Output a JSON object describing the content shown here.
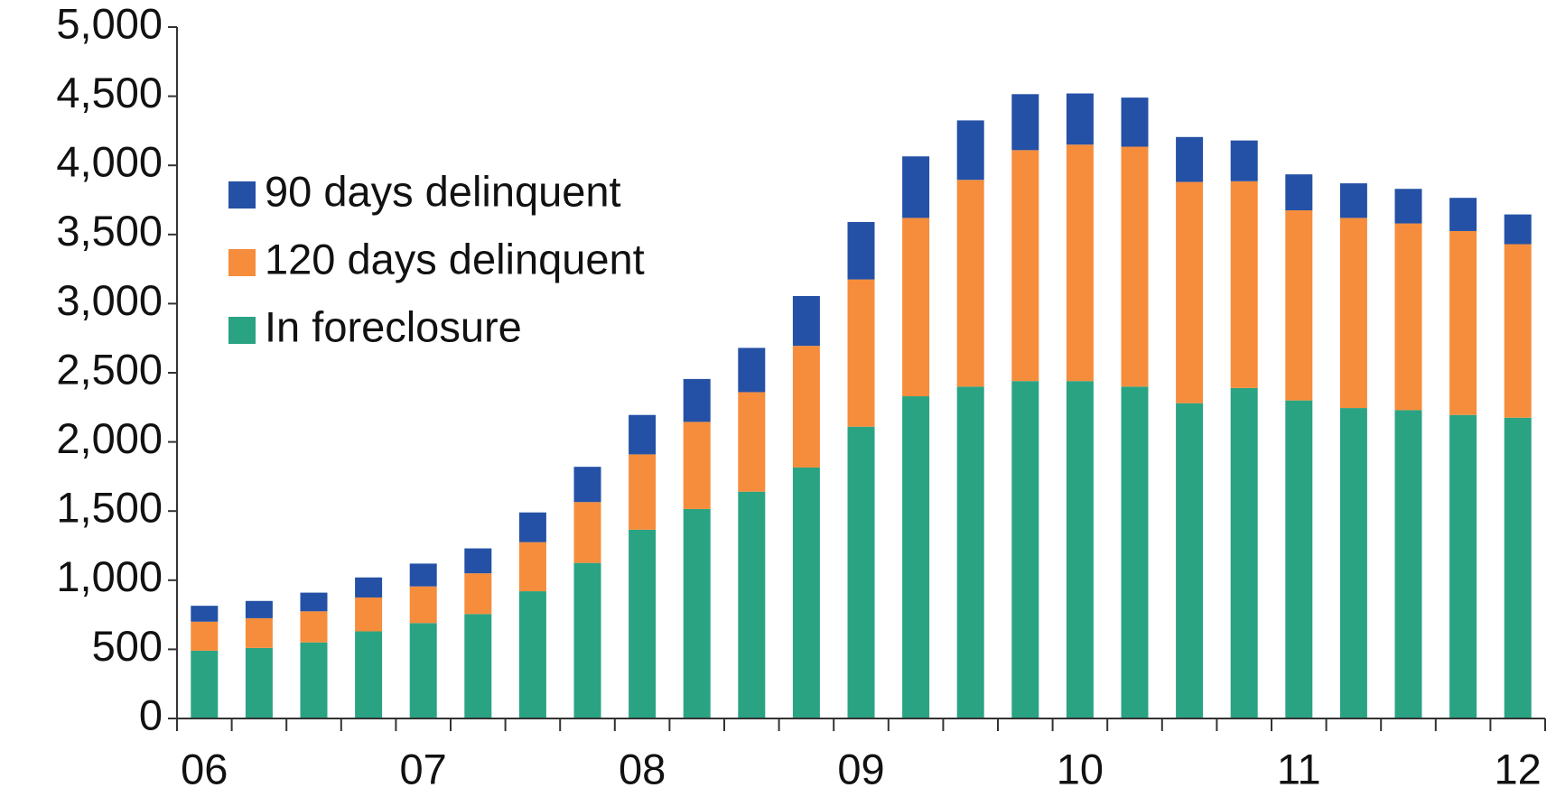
{
  "chart_data": {
    "type": "stacked_bar",
    "categories": [
      "06",
      null,
      null,
      null,
      "07",
      null,
      null,
      null,
      "08",
      null,
      null,
      null,
      "09",
      null,
      null,
      null,
      "10",
      null,
      null,
      null,
      "11",
      null,
      null,
      null,
      "12"
    ],
    "series": [
      {
        "name": "90 days delinquent",
        "color": "#2451a6",
        "values": [
          115,
          125,
          135,
          145,
          165,
          180,
          215,
          255,
          285,
          310,
          320,
          360,
          415,
          445,
          430,
          405,
          370,
          355,
          325,
          295,
          260,
          250,
          250,
          240,
          215
        ]
      },
      {
        "name": "120 days delinquent",
        "color": "#f58d3c",
        "values": [
          210,
          215,
          225,
          245,
          265,
          295,
          355,
          440,
          545,
          630,
          720,
          880,
          1065,
          1290,
          1495,
          1670,
          1710,
          1735,
          1600,
          1495,
          1375,
          1375,
          1350,
          1330,
          1255
        ]
      },
      {
        "name": "In foreclosure",
        "color": "#2aa383",
        "values": [
          490,
          510,
          550,
          630,
          690,
          755,
          920,
          1125,
          1365,
          1515,
          1640,
          1815,
          2110,
          2330,
          2400,
          2440,
          2440,
          2400,
          2280,
          2390,
          2300,
          2245,
          2230,
          2195,
          2175
        ]
      }
    ],
    "ylim": [
      0,
      5000
    ],
    "yticks": [
      0,
      500,
      {
        "value": 1000,
        "label": "1,000"
      },
      {
        "value": 1500,
        "label": "1,500"
      },
      {
        "value": 2000,
        "label": "2,000"
      },
      {
        "value": 2500,
        "label": "2,500"
      },
      {
        "value": 3000,
        "label": "3,000"
      },
      {
        "value": 3500,
        "label": "3,500"
      },
      {
        "value": 4000,
        "label": "4,000"
      },
      {
        "value": 4500,
        "label": "4,500"
      },
      {
        "value": 5000,
        "label": "5,000"
      }
    ],
    "legend": "upper left"
  }
}
